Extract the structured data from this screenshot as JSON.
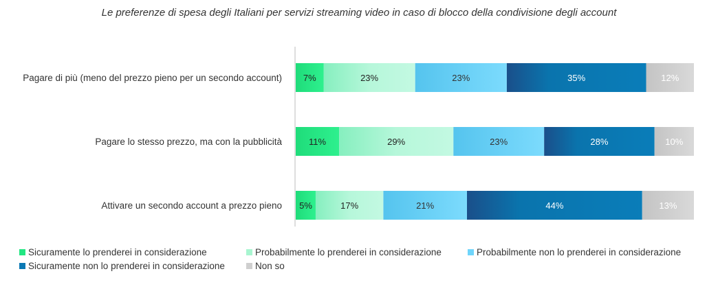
{
  "chart_data": {
    "type": "bar",
    "orientation": "horizontal",
    "stacked": true,
    "title": "Le preferenze di spesa degli Italiani per servizi streaming video in caso di blocco della condivisione degli account",
    "categories": [
      "Pagare di più (meno del prezzo pieno per un secondo account)",
      "Pagare lo stesso prezzo, ma con la pubblicità",
      "Attivare un secondo account a prezzo pieno"
    ],
    "series": [
      {
        "name": "Sicuramente lo prenderei in considerazione",
        "values": [
          7,
          11,
          5
        ],
        "color": "#22e682",
        "label_color": "#222222"
      },
      {
        "name": "Probabilmente lo prenderei in considerazione",
        "values": [
          23,
          29,
          17
        ],
        "color": "#a8f5d0",
        "label_color": "#222222"
      },
      {
        "name": "Probabilmente non lo prenderei in considerazione",
        "values": [
          23,
          23,
          21
        ],
        "color": "#6fd5fb",
        "label_color": "#333333"
      },
      {
        "name": "Sicuramente non lo prenderei in considerazione",
        "values": [
          35,
          28,
          44
        ],
        "color": "#0a78b4",
        "label_color": "#ffffff"
      },
      {
        "name": "Non so",
        "values": [
          12,
          10,
          13
        ],
        "color": "#cfcfcf",
        "label_color": "#ffffff"
      }
    ],
    "value_suffix": "%",
    "legend_position": "bottom",
    "grid": false
  }
}
